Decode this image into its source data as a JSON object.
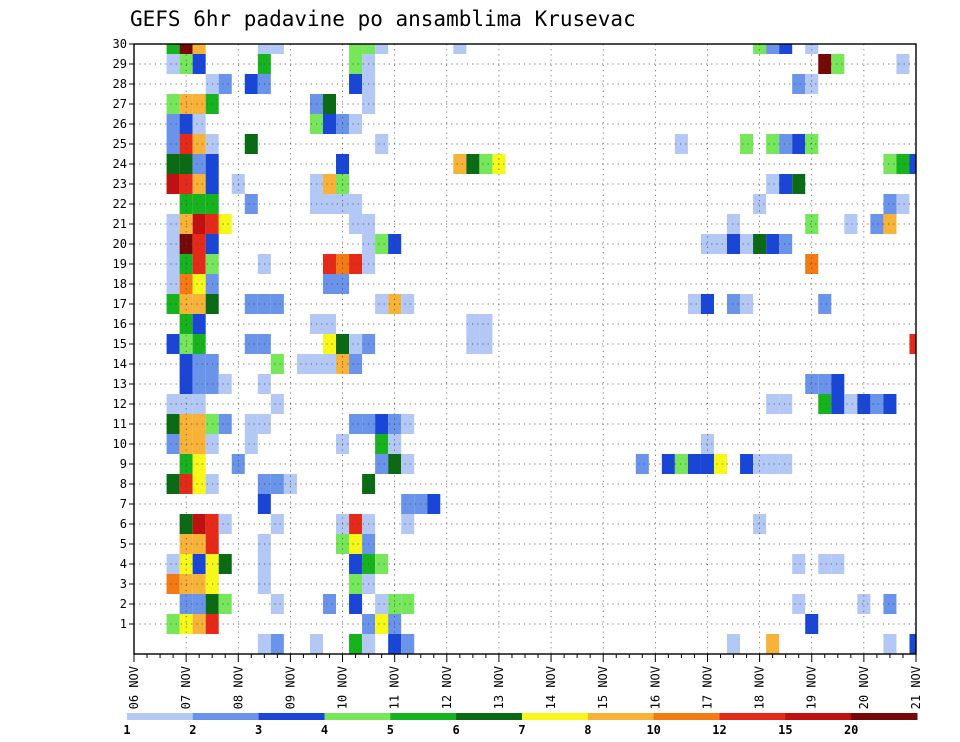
{
  "chart_data": {
    "type": "heatmap",
    "title": "GEFS 6hr padavine po ansamblima Krusevac",
    "y_ticks": [
      "1",
      "2",
      "3",
      "4",
      "5",
      "6",
      "7",
      "8",
      "9",
      "10",
      "11",
      "12",
      "13",
      "14",
      "15",
      "16",
      "17",
      "18",
      "19",
      "20",
      "21",
      "22",
      "23",
      "24",
      "25",
      "26",
      "27",
      "28",
      "29",
      "30"
    ],
    "x_ticks": [
      "06 NOV",
      "07 NOV",
      "08 NOV",
      "09 NOV",
      "10 NOV",
      "11 NOV",
      "12 NOV",
      "13 NOV",
      "14 NOV",
      "15 NOV",
      "16 NOV",
      "17 NOV",
      "18 NOV",
      "19 NOV",
      "20 NOV",
      "21 NOV"
    ],
    "x_start_day": 6,
    "steps_per_day": 4,
    "n_steps": 60,
    "n_members": 30,
    "grid": true,
    "colorbar": {
      "labels": [
        "1",
        "2",
        "3",
        "4",
        "5",
        "6",
        "7",
        "8",
        "10",
        "12",
        "15",
        "20"
      ],
      "colors": [
        "#b3c8f5",
        "#6a93ea",
        "#1946d6",
        "#76e65a",
        "#16b31e",
        "#0a6b14",
        "#f7f71a",
        "#f7b238",
        "#f47a14",
        "#e52a1a",
        "#c01010",
        "#760808"
      ]
    },
    "legend": "bottom colorbar",
    "cells": [
      [
        30,
        3,
        4
      ],
      [
        30,
        4,
        11
      ],
      [
        30,
        5,
        7
      ],
      [
        30,
        10,
        0
      ],
      [
        30,
        11,
        0
      ],
      [
        30,
        17,
        3
      ],
      [
        30,
        18,
        3
      ],
      [
        30,
        19,
        0
      ],
      [
        30,
        25,
        0
      ],
      [
        30,
        48,
        3
      ],
      [
        30,
        49,
        1
      ],
      [
        30,
        50,
        2
      ],
      [
        30,
        52,
        0
      ],
      [
        29,
        3,
        0
      ],
      [
        29,
        4,
        3
      ],
      [
        29,
        5,
        2
      ],
      [
        29,
        10,
        4
      ],
      [
        29,
        17,
        3
      ],
      [
        29,
        18,
        0
      ],
      [
        29,
        53,
        11
      ],
      [
        29,
        54,
        3
      ],
      [
        29,
        59,
        0
      ],
      [
        28,
        6,
        0
      ],
      [
        28,
        7,
        1
      ],
      [
        28,
        9,
        2
      ],
      [
        28,
        10,
        1
      ],
      [
        28,
        17,
        2
      ],
      [
        28,
        18,
        0
      ],
      [
        28,
        51,
        1
      ],
      [
        28,
        52,
        0
      ],
      [
        27,
        3,
        3
      ],
      [
        27,
        4,
        7
      ],
      [
        27,
        5,
        7
      ],
      [
        27,
        6,
        4
      ],
      [
        27,
        14,
        1
      ],
      [
        27,
        15,
        5
      ],
      [
        27,
        18,
        0
      ],
      [
        26,
        3,
        1
      ],
      [
        26,
        4,
        2
      ],
      [
        26,
        5,
        0
      ],
      [
        26,
        14,
        3
      ],
      [
        26,
        15,
        2
      ],
      [
        26,
        16,
        1
      ],
      [
        26,
        17,
        0
      ],
      [
        25,
        3,
        1
      ],
      [
        25,
        4,
        9
      ],
      [
        25,
        5,
        7
      ],
      [
        25,
        6,
        0
      ],
      [
        25,
        9,
        5
      ],
      [
        25,
        19,
        0
      ],
      [
        25,
        42,
        0
      ],
      [
        25,
        47,
        3
      ],
      [
        25,
        49,
        3
      ],
      [
        25,
        50,
        1
      ],
      [
        25,
        51,
        2
      ],
      [
        25,
        52,
        3
      ],
      [
        24,
        3,
        5
      ],
      [
        24,
        4,
        5
      ],
      [
        24,
        5,
        1
      ],
      [
        24,
        6,
        2
      ],
      [
        24,
        16,
        2
      ],
      [
        24,
        25,
        7
      ],
      [
        24,
        26,
        5
      ],
      [
        24,
        27,
        3
      ],
      [
        24,
        28,
        6
      ],
      [
        24,
        58,
        3
      ],
      [
        24,
        59,
        4
      ],
      [
        24,
        60,
        2
      ],
      [
        23,
        3,
        10
      ],
      [
        23,
        4,
        9
      ],
      [
        23,
        5,
        7
      ],
      [
        23,
        6,
        2
      ],
      [
        23,
        8,
        0
      ],
      [
        23,
        14,
        0
      ],
      [
        23,
        15,
        7
      ],
      [
        23,
        16,
        3
      ],
      [
        23,
        49,
        0
      ],
      [
        23,
        50,
        2
      ],
      [
        23,
        51,
        5
      ],
      [
        22,
        4,
        4
      ],
      [
        22,
        5,
        4
      ],
      [
        22,
        6,
        4
      ],
      [
        22,
        9,
        1
      ],
      [
        22,
        14,
        0
      ],
      [
        22,
        15,
        0
      ],
      [
        22,
        16,
        0
      ],
      [
        22,
        17,
        0
      ],
      [
        22,
        48,
        0
      ],
      [
        22,
        58,
        1
      ],
      [
        22,
        59,
        0
      ],
      [
        21,
        3,
        0
      ],
      [
        21,
        4,
        7
      ],
      [
        21,
        5,
        10
      ],
      [
        21,
        6,
        9
      ],
      [
        21,
        7,
        6
      ],
      [
        21,
        17,
        0
      ],
      [
        21,
        18,
        0
      ],
      [
        21,
        46,
        0
      ],
      [
        21,
        52,
        3
      ],
      [
        21,
        55,
        0
      ],
      [
        21,
        57,
        1
      ],
      [
        21,
        58,
        7
      ],
      [
        20,
        3,
        0
      ],
      [
        20,
        4,
        11
      ],
      [
        20,
        5,
        9
      ],
      [
        20,
        6,
        2
      ],
      [
        20,
        18,
        0
      ],
      [
        20,
        19,
        3
      ],
      [
        20,
        20,
        2
      ],
      [
        20,
        44,
        0
      ],
      [
        20,
        45,
        0
      ],
      [
        20,
        46,
        2
      ],
      [
        20,
        47,
        0
      ],
      [
        20,
        48,
        5
      ],
      [
        20,
        49,
        2
      ],
      [
        20,
        50,
        1
      ],
      [
        19,
        3,
        0
      ],
      [
        19,
        4,
        4
      ],
      [
        19,
        5,
        9
      ],
      [
        19,
        6,
        3
      ],
      [
        19,
        10,
        0
      ],
      [
        19,
        15,
        9
      ],
      [
        19,
        16,
        8
      ],
      [
        19,
        17,
        9
      ],
      [
        19,
        18,
        0
      ],
      [
        19,
        52,
        8
      ],
      [
        18,
        3,
        0
      ],
      [
        18,
        4,
        8
      ],
      [
        18,
        5,
        6
      ],
      [
        18,
        6,
        1
      ],
      [
        18,
        15,
        1
      ],
      [
        18,
        16,
        1
      ],
      [
        17,
        3,
        4
      ],
      [
        17,
        4,
        7
      ],
      [
        17,
        5,
        7
      ],
      [
        17,
        6,
        5
      ],
      [
        17,
        9,
        1
      ],
      [
        17,
        10,
        1
      ],
      [
        17,
        11,
        1
      ],
      [
        17,
        19,
        0
      ],
      [
        17,
        20,
        7
      ],
      [
        17,
        21,
        0
      ],
      [
        17,
        43,
        0
      ],
      [
        17,
        44,
        2
      ],
      [
        17,
        46,
        1
      ],
      [
        17,
        47,
        0
      ],
      [
        17,
        53,
        1
      ],
      [
        16,
        4,
        4
      ],
      [
        16,
        5,
        2
      ],
      [
        16,
        14,
        0
      ],
      [
        16,
        15,
        0
      ],
      [
        16,
        26,
        0
      ],
      [
        16,
        27,
        0
      ],
      [
        15,
        3,
        2
      ],
      [
        15,
        4,
        3
      ],
      [
        15,
        5,
        4
      ],
      [
        15,
        9,
        1
      ],
      [
        15,
        10,
        1
      ],
      [
        15,
        15,
        6
      ],
      [
        15,
        16,
        5
      ],
      [
        15,
        17,
        0
      ],
      [
        15,
        18,
        1
      ],
      [
        15,
        26,
        0
      ],
      [
        15,
        27,
        0
      ],
      [
        15,
        60,
        9
      ],
      [
        14,
        4,
        2
      ],
      [
        14,
        5,
        1
      ],
      [
        14,
        6,
        1
      ],
      [
        14,
        11,
        3
      ],
      [
        14,
        13,
        0
      ],
      [
        14,
        14,
        0
      ],
      [
        14,
        15,
        0
      ],
      [
        14,
        16,
        7
      ],
      [
        14,
        17,
        1
      ],
      [
        13,
        4,
        2
      ],
      [
        13,
        5,
        1
      ],
      [
        13,
        6,
        1
      ],
      [
        13,
        7,
        0
      ],
      [
        13,
        10,
        0
      ],
      [
        13,
        52,
        1
      ],
      [
        13,
        53,
        1
      ],
      [
        13,
        54,
        2
      ],
      [
        12,
        3,
        0
      ],
      [
        12,
        4,
        0
      ],
      [
        12,
        5,
        0
      ],
      [
        12,
        11,
        0
      ],
      [
        12,
        49,
        0
      ],
      [
        12,
        50,
        0
      ],
      [
        12,
        53,
        4
      ],
      [
        12,
        54,
        2
      ],
      [
        12,
        55,
        0
      ],
      [
        12,
        56,
        2
      ],
      [
        12,
        57,
        1
      ],
      [
        12,
        58,
        2
      ],
      [
        11,
        3,
        5
      ],
      [
        11,
        4,
        7
      ],
      [
        11,
        5,
        7
      ],
      [
        11,
        6,
        3
      ],
      [
        11,
        7,
        1
      ],
      [
        11,
        9,
        0
      ],
      [
        11,
        10,
        0
      ],
      [
        11,
        17,
        1
      ],
      [
        11,
        18,
        1
      ],
      [
        11,
        19,
        2
      ],
      [
        11,
        20,
        1
      ],
      [
        11,
        21,
        0
      ],
      [
        10,
        3,
        1
      ],
      [
        10,
        4,
        7
      ],
      [
        10,
        5,
        7
      ],
      [
        10,
        6,
        0
      ],
      [
        10,
        9,
        0
      ],
      [
        10,
        16,
        0
      ],
      [
        10,
        19,
        4
      ],
      [
        10,
        20,
        0
      ],
      [
        10,
        44,
        0
      ],
      [
        9,
        4,
        4
      ],
      [
        9,
        5,
        6
      ],
      [
        9,
        8,
        1
      ],
      [
        9,
        19,
        1
      ],
      [
        9,
        20,
        5
      ],
      [
        9,
        21,
        0
      ],
      [
        9,
        39,
        1
      ],
      [
        9,
        41,
        2
      ],
      [
        9,
        42,
        3
      ],
      [
        9,
        43,
        2
      ],
      [
        9,
        44,
        2
      ],
      [
        9,
        45,
        6
      ],
      [
        9,
        47,
        2
      ],
      [
        9,
        48,
        0
      ],
      [
        9,
        49,
        0
      ],
      [
        9,
        50,
        0
      ],
      [
        8,
        3,
        5
      ],
      [
        8,
        4,
        9
      ],
      [
        8,
        5,
        6
      ],
      [
        8,
        6,
        0
      ],
      [
        8,
        10,
        1
      ],
      [
        8,
        11,
        1
      ],
      [
        8,
        12,
        0
      ],
      [
        8,
        18,
        5
      ],
      [
        7,
        10,
        2
      ],
      [
        7,
        21,
        1
      ],
      [
        7,
        22,
        1
      ],
      [
        7,
        23,
        2
      ],
      [
        6,
        4,
        5
      ],
      [
        6,
        5,
        10
      ],
      [
        6,
        6,
        9
      ],
      [
        6,
        7,
        0
      ],
      [
        6,
        11,
        0
      ],
      [
        6,
        16,
        0
      ],
      [
        6,
        17,
        9
      ],
      [
        6,
        18,
        0
      ],
      [
        6,
        21,
        0
      ],
      [
        6,
        48,
        0
      ],
      [
        5,
        4,
        7
      ],
      [
        5,
        5,
        7
      ],
      [
        5,
        6,
        9
      ],
      [
        5,
        10,
        0
      ],
      [
        5,
        16,
        3
      ],
      [
        5,
        17,
        6
      ],
      [
        5,
        18,
        1
      ],
      [
        4,
        3,
        0
      ],
      [
        4,
        4,
        6
      ],
      [
        4,
        5,
        2
      ],
      [
        4,
        6,
        6
      ],
      [
        4,
        7,
        5
      ],
      [
        4,
        10,
        0
      ],
      [
        4,
        17,
        2
      ],
      [
        4,
        18,
        4
      ],
      [
        4,
        19,
        3
      ],
      [
        4,
        51,
        0
      ],
      [
        4,
        53,
        0
      ],
      [
        4,
        54,
        0
      ],
      [
        3,
        3,
        8
      ],
      [
        3,
        4,
        7
      ],
      [
        3,
        5,
        7
      ],
      [
        3,
        6,
        6
      ],
      [
        3,
        10,
        0
      ],
      [
        3,
        17,
        3
      ],
      [
        3,
        18,
        0
      ],
      [
        2,
        4,
        1
      ],
      [
        2,
        5,
        1
      ],
      [
        2,
        6,
        5
      ],
      [
        2,
        7,
        3
      ],
      [
        2,
        11,
        0
      ],
      [
        2,
        15,
        1
      ],
      [
        2,
        17,
        2
      ],
      [
        2,
        19,
        0
      ],
      [
        2,
        20,
        3
      ],
      [
        2,
        21,
        3
      ],
      [
        2,
        51,
        0
      ],
      [
        2,
        56,
        0
      ],
      [
        2,
        58,
        1
      ],
      [
        1,
        3,
        3
      ],
      [
        1,
        4,
        6
      ],
      [
        1,
        5,
        7
      ],
      [
        1,
        6,
        9
      ],
      [
        1,
        18,
        1
      ],
      [
        1,
        19,
        6
      ],
      [
        1,
        20,
        1
      ],
      [
        1,
        52,
        2
      ],
      [
        0,
        10,
        0
      ],
      [
        0,
        11,
        1
      ],
      [
        0,
        14,
        0
      ],
      [
        0,
        17,
        4
      ],
      [
        0,
        18,
        0
      ],
      [
        0,
        20,
        2
      ],
      [
        0,
        21,
        1
      ],
      [
        0,
        46,
        0
      ],
      [
        0,
        49,
        7
      ],
      [
        0,
        58,
        0
      ],
      [
        0,
        60,
        2
      ]
    ]
  }
}
